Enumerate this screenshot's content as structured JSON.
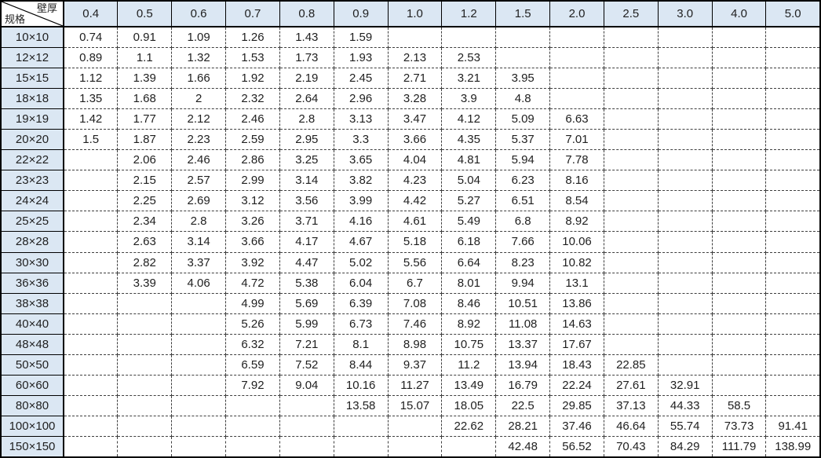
{
  "table": {
    "corner": {
      "top_right_label": "壁厚",
      "bottom_left_label": "规格"
    },
    "column_headers": [
      "0.4",
      "0.5",
      "0.6",
      "0.7",
      "0.8",
      "0.9",
      "1.0",
      "1.2",
      "1.5",
      "2.0",
      "2.5",
      "3.0",
      "4.0",
      "5.0"
    ],
    "rows": [
      {
        "label": "10×10",
        "values": [
          "0.74",
          "0.91",
          "1.09",
          "1.26",
          "1.43",
          "1.59",
          "",
          "",
          "",
          "",
          "",
          "",
          "",
          ""
        ]
      },
      {
        "label": "12×12",
        "values": [
          "0.89",
          "1.1",
          "1.32",
          "1.53",
          "1.73",
          "1.93",
          "2.13",
          "2.53",
          "",
          "",
          "",
          "",
          "",
          ""
        ]
      },
      {
        "label": "15×15",
        "values": [
          "1.12",
          "1.39",
          "1.66",
          "1.92",
          "2.19",
          "2.45",
          "2.71",
          "3.21",
          "3.95",
          "",
          "",
          "",
          "",
          ""
        ]
      },
      {
        "label": "18×18",
        "values": [
          "1.35",
          "1.68",
          "2",
          "2.32",
          "2.64",
          "2.96",
          "3.28",
          "3.9",
          "4.8",
          "",
          "",
          "",
          "",
          ""
        ]
      },
      {
        "label": "19×19",
        "values": [
          "1.42",
          "1.77",
          "2.12",
          "2.46",
          "2.8",
          "3.13",
          "3.47",
          "4.12",
          "5.09",
          "6.63",
          "",
          "",
          "",
          ""
        ]
      },
      {
        "label": "20×20",
        "values": [
          "1.5",
          "1.87",
          "2.23",
          "2.59",
          "2.95",
          "3.3",
          "3.66",
          "4.35",
          "5.37",
          "7.01",
          "",
          "",
          "",
          ""
        ]
      },
      {
        "label": "22×22",
        "values": [
          "",
          "2.06",
          "2.46",
          "2.86",
          "3.25",
          "3.65",
          "4.04",
          "4.81",
          "5.94",
          "7.78",
          "",
          "",
          "",
          ""
        ]
      },
      {
        "label": "23×23",
        "values": [
          "",
          "2.15",
          "2.57",
          "2.99",
          "3.14",
          "3.82",
          "4.23",
          "5.04",
          "6.23",
          "8.16",
          "",
          "",
          "",
          ""
        ]
      },
      {
        "label": "24×24",
        "values": [
          "",
          "2.25",
          "2.69",
          "3.12",
          "3.56",
          "3.99",
          "4.42",
          "5.27",
          "6.51",
          "8.54",
          "",
          "",
          "",
          ""
        ]
      },
      {
        "label": "25×25",
        "values": [
          "",
          "2.34",
          "2.8",
          "3.26",
          "3.71",
          "4.16",
          "4.61",
          "5.49",
          "6.8",
          "8.92",
          "",
          "",
          "",
          ""
        ]
      },
      {
        "label": "28×28",
        "values": [
          "",
          "2.63",
          "3.14",
          "3.66",
          "4.17",
          "4.67",
          "5.18",
          "6.18",
          "7.66",
          "10.06",
          "",
          "",
          "",
          ""
        ]
      },
      {
        "label": "30×30",
        "values": [
          "",
          "2.82",
          "3.37",
          "3.92",
          "4.47",
          "5.02",
          "5.56",
          "6.64",
          "8.23",
          "10.82",
          "",
          "",
          "",
          ""
        ]
      },
      {
        "label": "36×36",
        "values": [
          "",
          "3.39",
          "4.06",
          "4.72",
          "5.38",
          "6.04",
          "6.7",
          "8.01",
          "9.94",
          "13.1",
          "",
          "",
          "",
          ""
        ]
      },
      {
        "label": "38×38",
        "values": [
          "",
          "",
          "",
          "4.99",
          "5.69",
          "6.39",
          "7.08",
          "8.46",
          "10.51",
          "13.86",
          "",
          "",
          "",
          ""
        ]
      },
      {
        "label": "40×40",
        "values": [
          "",
          "",
          "",
          "5.26",
          "5.99",
          "6.73",
          "7.46",
          "8.92",
          "11.08",
          "14.63",
          "",
          "",
          "",
          ""
        ]
      },
      {
        "label": "48×48",
        "values": [
          "",
          "",
          "",
          "6.32",
          "7.21",
          "8.1",
          "8.98",
          "10.75",
          "13.37",
          "17.67",
          "",
          "",
          "",
          ""
        ]
      },
      {
        "label": "50×50",
        "values": [
          "",
          "",
          "",
          "6.59",
          "7.52",
          "8.44",
          "9.37",
          "11.2",
          "13.94",
          "18.43",
          "22.85",
          "",
          "",
          ""
        ]
      },
      {
        "label": "60×60",
        "values": [
          "",
          "",
          "",
          "7.92",
          "9.04",
          "10.16",
          "11.27",
          "13.49",
          "16.79",
          "22.24",
          "27.61",
          "32.91",
          "",
          ""
        ]
      },
      {
        "label": "80×80",
        "values": [
          "",
          "",
          "",
          "",
          "",
          "13.58",
          "15.07",
          "18.05",
          "22.5",
          "29.85",
          "37.13",
          "44.33",
          "58.5",
          ""
        ]
      },
      {
        "label": "100×100",
        "values": [
          "",
          "",
          "",
          "",
          "",
          "",
          "",
          "22.62",
          "28.21",
          "37.46",
          "46.64",
          "55.74",
          "73.73",
          "91.41"
        ]
      },
      {
        "label": "150×150",
        "values": [
          "",
          "",
          "",
          "",
          "",
          "",
          "",
          "",
          "42.48",
          "56.52",
          "70.43",
          "84.29",
          "111.79",
          "138.99"
        ]
      }
    ]
  },
  "colors": {
    "header_bg": "#dbe7f3",
    "border_solid": "#000000",
    "border_dashed": "#3f3f3f",
    "text": "#1f1f1f",
    "cell_bg": "#ffffff"
  }
}
